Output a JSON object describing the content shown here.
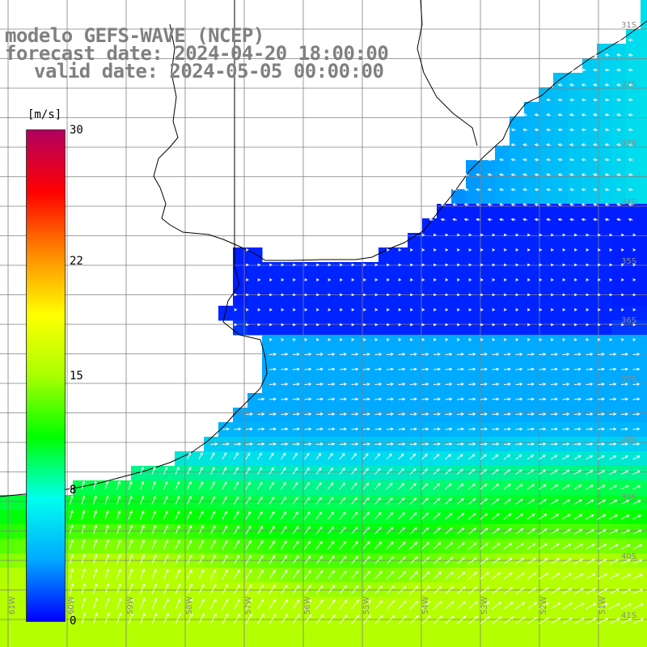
{
  "title": {
    "line1": "modelo GEFS-WAVE (NCEP)",
    "line2": "forecast date: 2024-04-20 18:00:00",
    "line3": "valid date: 2024-05-05 00:00:00"
  },
  "colorbar": {
    "unit": "[m/s]",
    "ticks": [
      "0",
      "8",
      "15",
      "22",
      "30"
    ],
    "stops": [
      "#0000ff",
      "#00aaff",
      "#00ffee",
      "#00ff00",
      "#aaff00",
      "#ffff00",
      "#ff8800",
      "#ff0000",
      "#b00060"
    ]
  },
  "map": {
    "latitude_labels": [
      "31S",
      "32S",
      "33S",
      "34S",
      "35S",
      "36S",
      "37S",
      "38S",
      "39S",
      "40S",
      "41S"
    ],
    "longitude_labels": [
      "61W",
      "60W",
      "59W",
      "58W",
      "57W",
      "56W",
      "55W",
      "54W",
      "53W",
      "52W",
      "51W"
    ],
    "land_color": "#ffffff",
    "grid_color": "#808080",
    "arrow_color": "#ffffff"
  }
}
